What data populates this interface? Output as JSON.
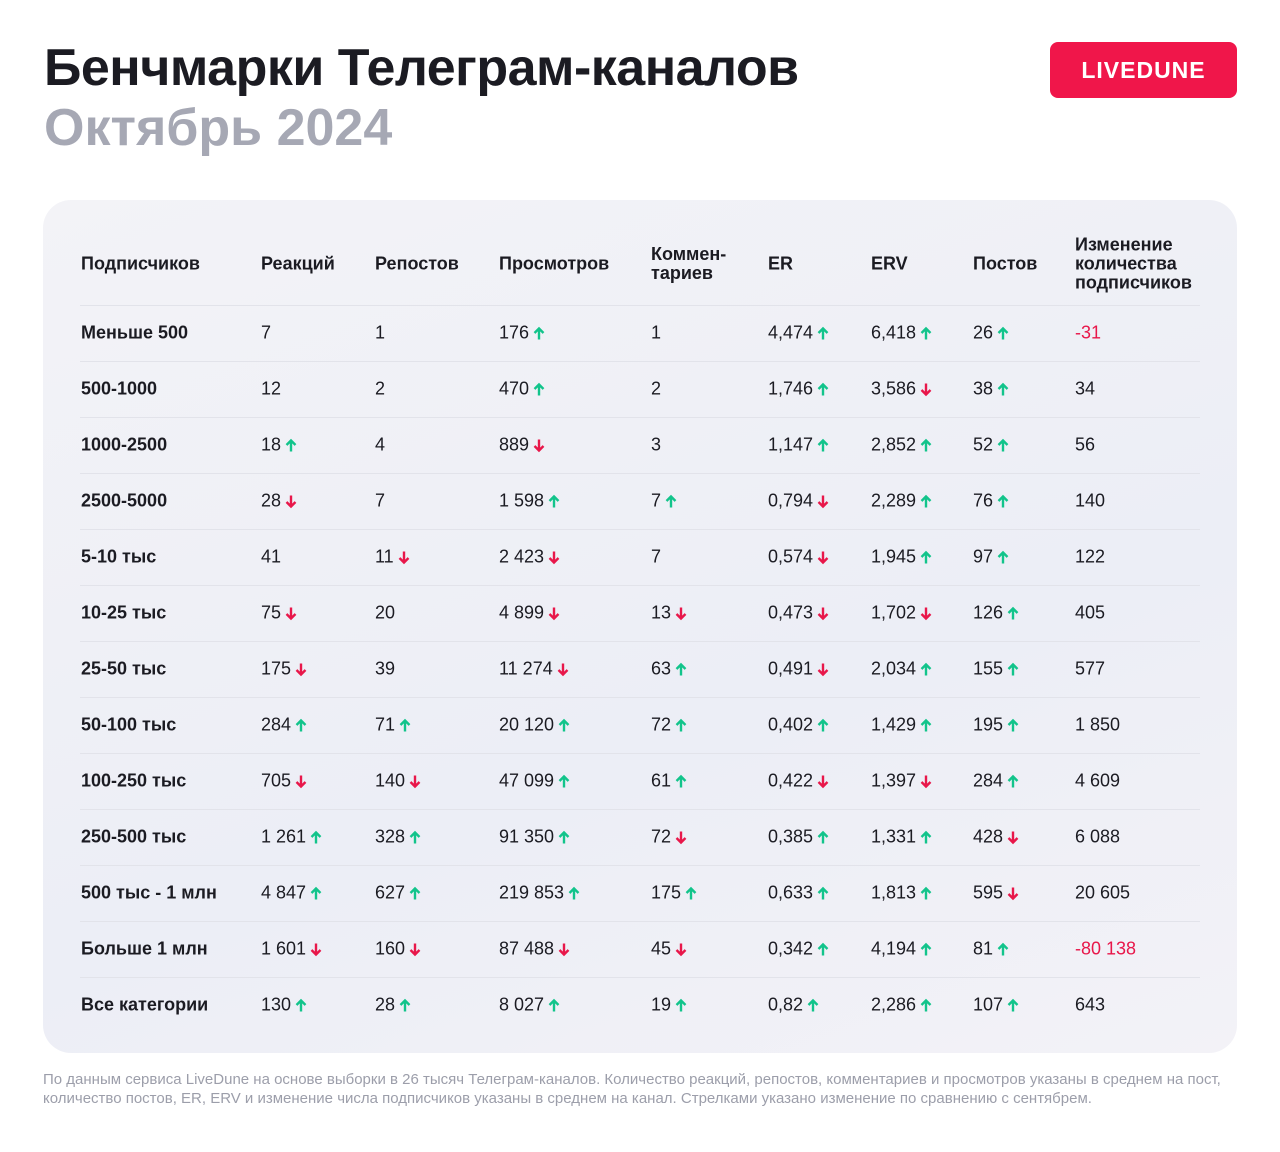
{
  "header": {
    "title": "Бенчмарки Телеграм-каналов",
    "subtitle": "Октябрь 2024",
    "logo": "LIVEDUNE"
  },
  "table": {
    "columns": [
      "Подписчиков",
      "Реакций",
      "Репостов",
      "Просмотров",
      "Коммен-\nтариев",
      "ER",
      "ERV",
      "Постов",
      "Изменение\nколичества\nподписчиков"
    ],
    "rows": [
      {
        "label": "Меньше 500",
        "cells": [
          "7",
          "1",
          "176",
          "1",
          "4,474",
          "6,418",
          "26",
          "-31"
        ],
        "trends": [
          null,
          null,
          "up",
          null,
          "up",
          "up",
          "up",
          null
        ]
      },
      {
        "label": "500-1000",
        "cells": [
          "12",
          "2",
          "470",
          "2",
          "1,746",
          "3,586",
          "38",
          "34"
        ],
        "trends": [
          null,
          null,
          "up",
          null,
          "up",
          "down",
          "up",
          null
        ]
      },
      {
        "label": "1000-2500",
        "cells": [
          "18",
          "4",
          "889",
          "3",
          "1,147",
          "2,852",
          "52",
          "56"
        ],
        "trends": [
          "up",
          null,
          "down",
          null,
          "up",
          "up",
          "up",
          null
        ]
      },
      {
        "label": "2500-5000",
        "cells": [
          "28",
          "7",
          "1 598",
          "7",
          "0,794",
          "2,289",
          "76",
          "140"
        ],
        "trends": [
          "down",
          null,
          "up",
          "up",
          "down",
          "up",
          "up",
          null
        ]
      },
      {
        "label": "5-10 тыс",
        "cells": [
          "41",
          "11",
          "2 423",
          "7",
          "0,574",
          "1,945",
          "97",
          "122"
        ],
        "trends": [
          null,
          "down",
          "down",
          null,
          "down",
          "up",
          "up",
          null
        ]
      },
      {
        "label": "10-25 тыс",
        "cells": [
          "75",
          "20",
          "4 899",
          "13",
          "0,473",
          "1,702",
          "126",
          "405"
        ],
        "trends": [
          "down",
          null,
          "down",
          "down",
          "down",
          "down",
          "up",
          null
        ]
      },
      {
        "label": "25-50 тыс",
        "cells": [
          "175",
          "39",
          "11 274",
          "63",
          "0,491",
          "2,034",
          "155",
          "577"
        ],
        "trends": [
          "down",
          null,
          "down",
          "up",
          "down",
          "up",
          "up",
          null
        ]
      },
      {
        "label": "50-100 тыс",
        "cells": [
          "284",
          "71",
          "20 120",
          "72",
          "0,402",
          "1,429",
          "195",
          "1 850"
        ],
        "trends": [
          "up",
          "up",
          "up",
          "up",
          "up",
          "up",
          "up",
          null
        ]
      },
      {
        "label": "100-250 тыс",
        "cells": [
          "705",
          "140",
          "47 099",
          "61",
          "0,422",
          "1,397",
          "284",
          "4 609"
        ],
        "trends": [
          "down",
          "down",
          "up",
          "up",
          "down",
          "down",
          "up",
          null
        ]
      },
      {
        "label": "250-500 тыс",
        "cells": [
          "1 261",
          "328",
          "91 350",
          "72",
          "0,385",
          "1,331",
          "428",
          "6 088"
        ],
        "trends": [
          "up",
          "up",
          "up",
          "down",
          "up",
          "up",
          "down",
          null
        ]
      },
      {
        "label": "500 тыс - 1 млн",
        "cells": [
          "4 847",
          "627",
          "219 853",
          "175",
          "0,633",
          "1,813",
          "595",
          "20 605"
        ],
        "trends": [
          "up",
          "up",
          "up",
          "up",
          "up",
          "up",
          "down",
          null
        ]
      },
      {
        "label": "Больше 1 млн",
        "cells": [
          "1 601",
          "160",
          "87 488",
          "45",
          "0,342",
          "4,194",
          "81",
          "-80 138"
        ],
        "trends": [
          "down",
          "down",
          "down",
          "down",
          "up",
          "up",
          "up",
          null
        ]
      },
      {
        "label": "Все категории",
        "cells": [
          "130",
          "28",
          "8 027",
          "19",
          "0,82",
          "2,286",
          "107",
          "643"
        ],
        "trends": [
          "up",
          "up",
          "up",
          "up",
          "up",
          "up",
          "up",
          null
        ]
      }
    ]
  },
  "footnote": "По данным сервиса LiveDune на основе выборки в 26 тысяч Телеграм-каналов. Количество реакций, репостов, комментариев и просмотров указаны в среднем на пост, количество постов, ER, ERV и изменение числа подписчиков указаны в среднем на канал. Стрелками указано изменение по сравнению с сентябрем."
}
